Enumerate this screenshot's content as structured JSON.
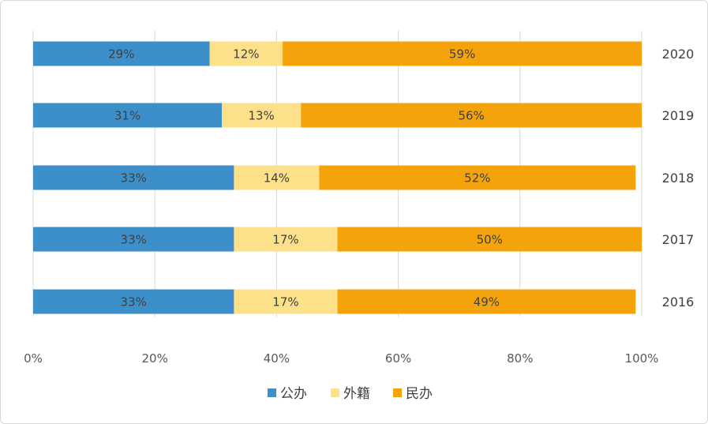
{
  "chart_data": {
    "type": "bar",
    "orientation": "horizontal",
    "stacked": "percent",
    "categories": [
      "2020",
      "2019",
      "2018",
      "2017",
      "2016"
    ],
    "series": [
      {
        "name": "公办",
        "color": "#3d8fc9",
        "values": [
          29,
          31,
          33,
          33,
          33
        ],
        "labels": [
          "29%",
          "31%",
          "33%",
          "33%",
          "33%"
        ]
      },
      {
        "name": "外籍",
        "color": "#fde08a",
        "values": [
          12,
          13,
          14,
          17,
          17
        ],
        "labels": [
          "12%",
          "13%",
          "14%",
          "17%",
          "17%"
        ]
      },
      {
        "name": "民办",
        "color": "#f5a30a",
        "values": [
          59,
          56,
          52,
          50,
          49
        ],
        "labels": [
          "59%",
          "56%",
          "52%",
          "50%",
          "49%"
        ]
      }
    ],
    "x_ticks": [
      "0%",
      "20%",
      "40%",
      "60%",
      "80%",
      "100%"
    ],
    "xlim": [
      0,
      100
    ],
    "grid": "vertical",
    "category_labels_position": "right",
    "legend_position": "bottom-center"
  }
}
